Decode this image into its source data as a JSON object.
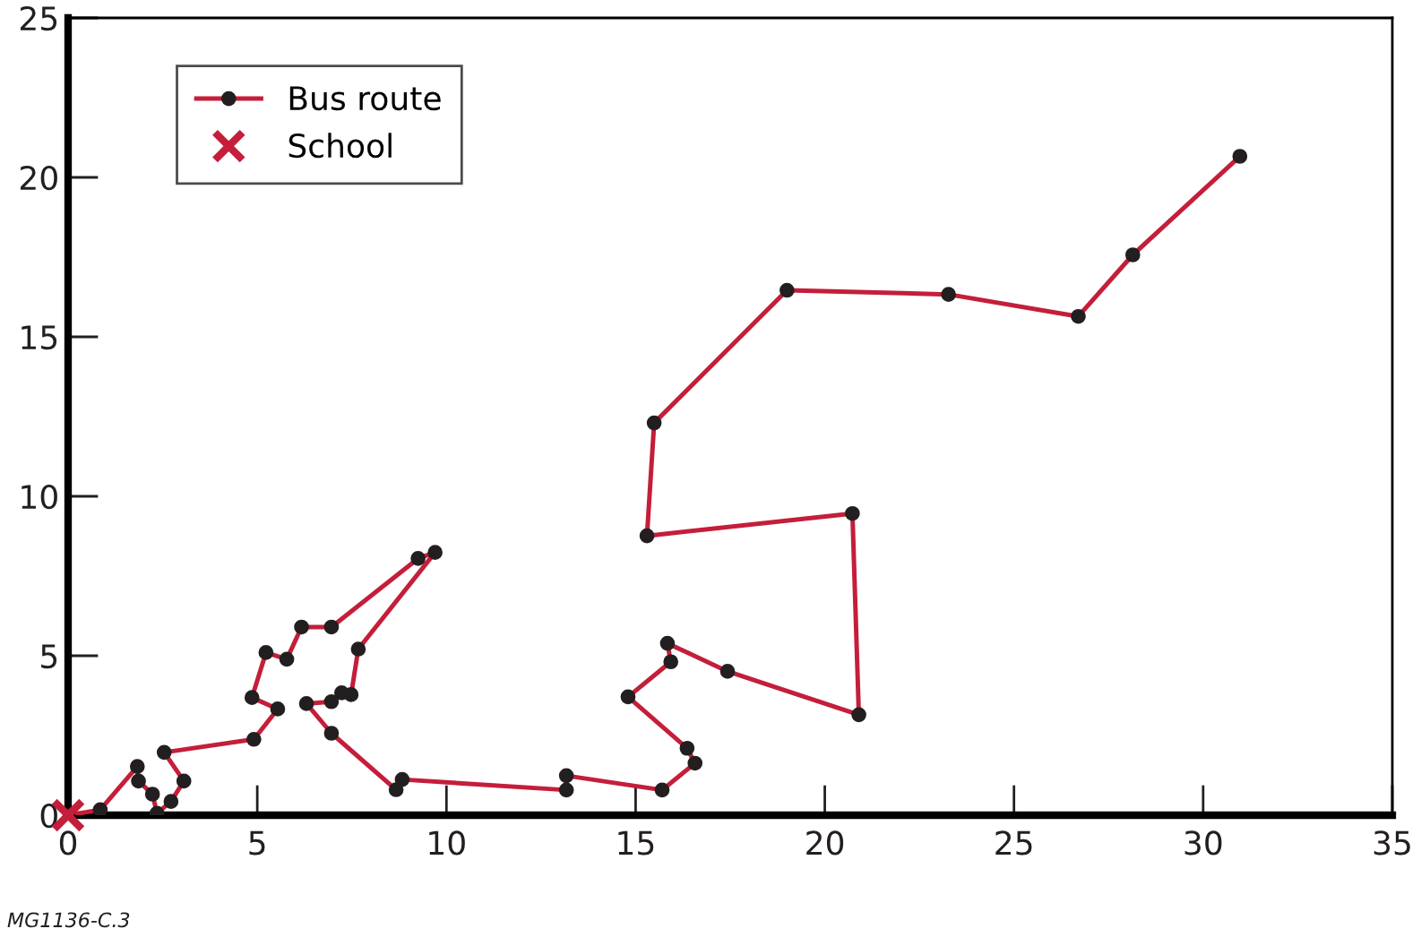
{
  "chart_data": {
    "type": "line",
    "xlim": [
      0,
      35
    ],
    "ylim": [
      0,
      25
    ],
    "xticks": [
      0,
      5,
      10,
      15,
      20,
      25,
      30,
      35
    ],
    "yticks": [
      0,
      5,
      10,
      15,
      20,
      25
    ],
    "grid": false,
    "legend": "top left",
    "series": [
      {
        "name": "Bus route",
        "color": "#c41e3a",
        "marker": "circle",
        "line_style": "solid",
        "x": [
          0,
          0.85,
          1.83,
          1.86,
          2.23,
          2.35,
          2.72,
          3.06,
          2.54,
          4.91,
          5.54,
          4.86,
          5.23,
          5.78,
          6.17,
          6.96,
          9.25,
          9.7,
          7.67,
          7.48,
          7.23,
          6.96,
          6.3,
          6.96,
          8.67,
          8.83,
          13.17,
          13.17,
          15.7,
          16.57,
          16.36,
          14.8,
          15.93,
          15.84,
          17.43,
          20.9,
          20.73,
          15.3,
          15.49,
          19.0,
          23.27,
          26.7,
          28.14,
          30.97
        ],
        "values": [
          0,
          0.17,
          1.53,
          1.07,
          0.66,
          0.06,
          0.43,
          1.07,
          1.97,
          2.38,
          3.33,
          3.69,
          5.1,
          4.89,
          5.9,
          5.9,
          8.05,
          8.24,
          5.21,
          3.78,
          3.84,
          3.56,
          3.5,
          2.57,
          0.8,
          1.12,
          0.79,
          1.24,
          0.79,
          1.63,
          2.1,
          3.71,
          4.81,
          5.39,
          4.51,
          3.15,
          9.46,
          8.76,
          12.3,
          16.46,
          16.33,
          15.64,
          17.57,
          20.66
        ]
      },
      {
        "name": "School",
        "type": "scatter",
        "color": "#c41e3a",
        "marker": "cross",
        "x": [
          0
        ],
        "values": [
          0
        ]
      }
    ],
    "annotations": [
      "MG1136-C.3"
    ]
  }
}
